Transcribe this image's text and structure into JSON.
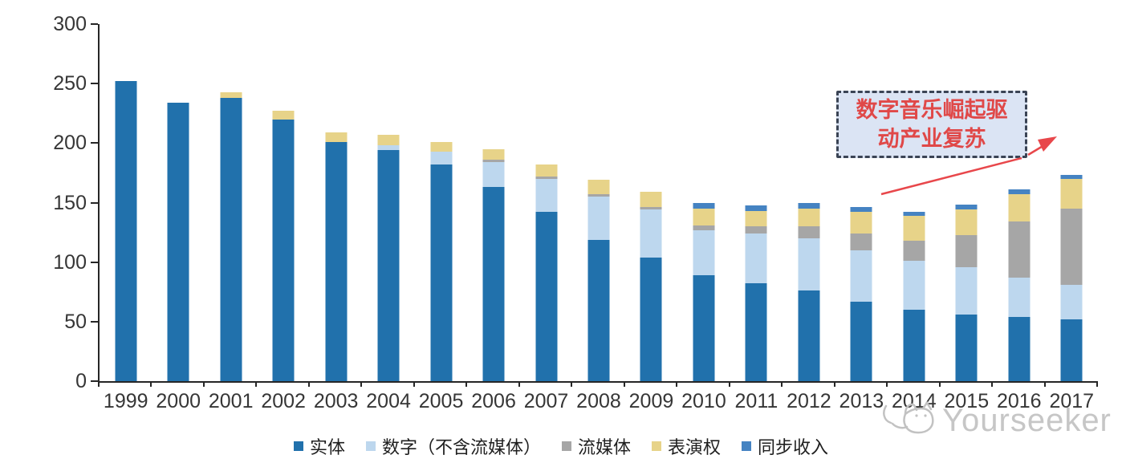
{
  "chart_data": {
    "type": "bar",
    "stacked": true,
    "title": "",
    "xlabel": "",
    "ylabel": "",
    "categories": [
      "1999",
      "2000",
      "2001",
      "2002",
      "2003",
      "2004",
      "2005",
      "2006",
      "2007",
      "2008",
      "2009",
      "2010",
      "2011",
      "2012",
      "2013",
      "2014",
      "2015",
      "2016",
      "2017"
    ],
    "series": [
      {
        "key": "physical",
        "name": "实体",
        "color": "#2171AC",
        "values": [
          252,
          234,
          238,
          220,
          201,
          194,
          182,
          163,
          142,
          119,
          104,
          89,
          82,
          76,
          67,
          60,
          56,
          54,
          52
        ]
      },
      {
        "key": "digital-excl-streaming",
        "name": "数字（不含流媒体）",
        "color": "#BDD7EE",
        "values": [
          0,
          0,
          0,
          0,
          0,
          4,
          11,
          21,
          28,
          36,
          40,
          38,
          42,
          44,
          43,
          41,
          40,
          33,
          29
        ]
      },
      {
        "key": "streaming",
        "name": "流媒体",
        "color": "#A6A6A6",
        "values": [
          0,
          0,
          0,
          0,
          0,
          0,
          0,
          2,
          2,
          2,
          2,
          4,
          6,
          10,
          14,
          17,
          27,
          47,
          64
        ]
      },
      {
        "key": "performance-rights",
        "name": "表演权",
        "color": "#E7D389",
        "values": [
          0,
          0,
          5,
          7,
          8,
          9,
          8,
          9,
          10,
          12,
          13,
          14,
          13,
          15,
          18,
          21,
          21,
          23,
          25
        ]
      },
      {
        "key": "sync-revenue",
        "name": "同步收入",
        "color": "#4583C2",
        "values": [
          0,
          0,
          0,
          0,
          0,
          0,
          0,
          0,
          0,
          0,
          0,
          5,
          5,
          5,
          4,
          3,
          4,
          4,
          3
        ]
      }
    ],
    "y_ticks": [
      0,
      50,
      100,
      150,
      200,
      250,
      300
    ],
    "ylim": [
      0,
      300
    ],
    "grid": false,
    "legend_position": "bottom"
  },
  "annotation": {
    "line1": "数字音乐崛起驱",
    "line2": "动产业复苏",
    "text_color": "#E04848",
    "border_color": "#3B4455",
    "fill_color": "#DBE4F4",
    "arrow_color": "#E8474B"
  },
  "watermark": {
    "text": "Yourseeker",
    "icon": "cat-logo-icon",
    "color": "#C6C6C6"
  },
  "axis": {
    "line_color": "#262626",
    "label_color": "#363636"
  }
}
